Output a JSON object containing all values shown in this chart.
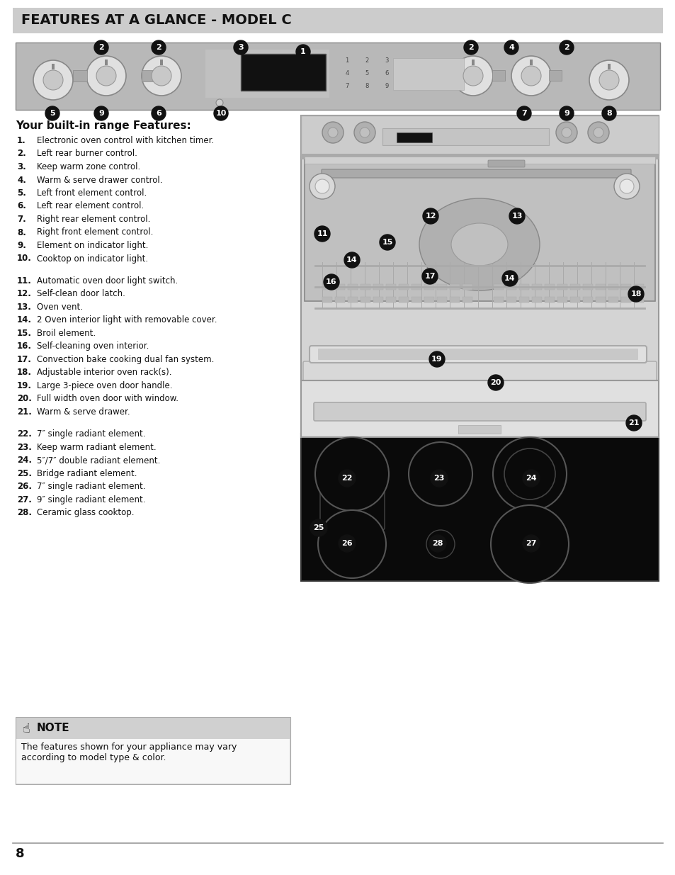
{
  "title": "FEATURES AT A GLANCE - MODEL C",
  "title_bg": "#cccccc",
  "title_color": "#1a1a1a",
  "page_bg": "#ffffff",
  "subtitle": "Your built-in range Features:",
  "features": [
    [
      "1.",
      "Electronic oven control with kitchen timer."
    ],
    [
      "2.",
      "Left rear burner control."
    ],
    [
      "3.",
      "Keep warm zone control."
    ],
    [
      "4.",
      "Warm & serve drawer control."
    ],
    [
      "5.",
      "Left front element control."
    ],
    [
      "6.",
      "Left rear element control."
    ],
    [
      "7.",
      "Right rear element control."
    ],
    [
      "8.",
      "Right front element control."
    ],
    [
      "9.",
      "Element on indicator light."
    ],
    [
      "10.",
      "Cooktop on indicator light."
    ],
    [
      "",
      ""
    ],
    [
      "11.",
      "Automatic oven door light switch."
    ],
    [
      "12.",
      "Self-clean door latch."
    ],
    [
      "13.",
      "Oven vent."
    ],
    [
      "14.",
      "2 Oven interior light with removable cover."
    ],
    [
      "15.",
      "Broil element."
    ],
    [
      "16.",
      "Self-cleaning oven interior."
    ],
    [
      "17.",
      "Convection bake cooking dual fan system."
    ],
    [
      "18.",
      "Adjustable interior oven rack(s)."
    ],
    [
      "19.",
      "Large 3-piece oven door handle."
    ],
    [
      "20.",
      "Full width oven door with window."
    ],
    [
      "21.",
      "Warm & serve drawer."
    ],
    [
      "",
      ""
    ],
    [
      "22.",
      "7″ single radiant element."
    ],
    [
      "23.",
      "Keep warm radiant element."
    ],
    [
      "24.",
      "5″/7″ double radiant element."
    ],
    [
      "25.",
      "Bridge radiant element."
    ],
    [
      "26.",
      "7″ single radiant element."
    ],
    [
      "27.",
      "9″ single radiant element."
    ],
    [
      "28.",
      "Ceramic glass cooktop."
    ]
  ],
  "note_bg": "#d0d0d0",
  "note_text_bg": "#f0f0f0",
  "note_title": "NOTE",
  "note_body": "The features shown for your appliance may vary\naccording to model type & color.",
  "page_number": "8",
  "footer_line_color": "#999999",
  "panel_labels": [
    [
      428,
      1162,
      "1"
    ],
    [
      143,
      1168,
      "2"
    ],
    [
      224,
      1168,
      "2"
    ],
    [
      340,
      1168,
      "3"
    ],
    [
      722,
      1168,
      "4"
    ],
    [
      665,
      1168,
      "2"
    ],
    [
      800,
      1168,
      "2"
    ],
    [
      74,
      1075,
      "5"
    ],
    [
      143,
      1075,
      "9"
    ],
    [
      224,
      1075,
      "6"
    ],
    [
      312,
      1075,
      "10"
    ],
    [
      740,
      1075,
      "7"
    ],
    [
      800,
      1075,
      "9"
    ],
    [
      860,
      1075,
      "8"
    ]
  ],
  "oven_labels": [
    [
      455,
      905,
      "11"
    ],
    [
      608,
      930,
      "12"
    ],
    [
      730,
      930,
      "13"
    ],
    [
      497,
      868,
      "14"
    ],
    [
      547,
      893,
      "15"
    ],
    [
      468,
      837,
      "16"
    ],
    [
      607,
      845,
      "17"
    ],
    [
      720,
      842,
      "14"
    ],
    [
      898,
      820,
      "18"
    ],
    [
      617,
      728,
      "19"
    ],
    [
      700,
      695,
      "20"
    ],
    [
      895,
      638,
      "21"
    ]
  ],
  "cooktop_labels": [
    [
      490,
      560,
      "22"
    ],
    [
      620,
      560,
      "23"
    ],
    [
      750,
      560,
      "24"
    ],
    [
      450,
      490,
      "25"
    ],
    [
      490,
      468,
      "26"
    ],
    [
      618,
      468,
      "28"
    ],
    [
      750,
      468,
      "27"
    ]
  ]
}
